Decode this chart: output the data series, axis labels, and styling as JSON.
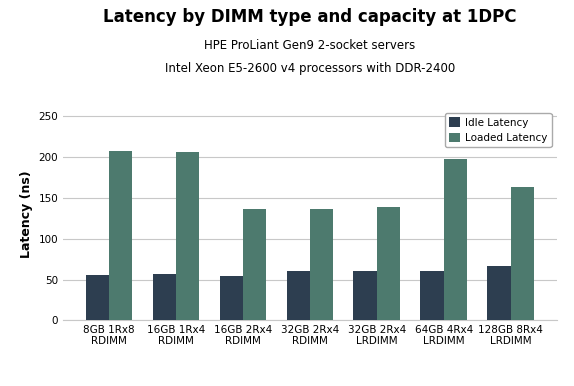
{
  "title": "Latency by DIMM type and capacity at 1DPC",
  "subtitle1": "HPE ProLiant Gen9 2-socket servers",
  "subtitle2": "Intel Xeon E5-2600 v4 processors with DDR-2400",
  "ylabel": "Latency (ns)",
  "categories": [
    "8GB 1Rx8\nRDIMM",
    "16GB 1Rx4\nRDIMM",
    "16GB 2Rx4\nRDIMM",
    "32GB 2Rx4\nRDIMM",
    "32GB 2Rx4\nLRDIMM",
    "64GB 4Rx4\nLRDIMM",
    "128GB 8Rx4\nLRDIMM"
  ],
  "idle_latency": [
    56,
    57,
    54,
    60,
    61,
    61,
    66
  ],
  "loaded_latency": [
    208,
    206,
    136,
    136,
    139,
    198,
    163
  ],
  "idle_color": "#2d3e50",
  "loaded_color": "#4d7a6e",
  "ylim": [
    0,
    260
  ],
  "yticks": [
    0,
    50,
    100,
    150,
    200,
    250
  ],
  "bar_width": 0.35,
  "legend_labels": [
    "Idle Latency",
    "Loaded Latency"
  ],
  "background_color": "#ffffff",
  "grid_color": "#c8c8c8",
  "title_fontsize": 12,
  "subtitle_fontsize": 8.5,
  "ylabel_fontsize": 9,
  "tick_fontsize": 7.5
}
